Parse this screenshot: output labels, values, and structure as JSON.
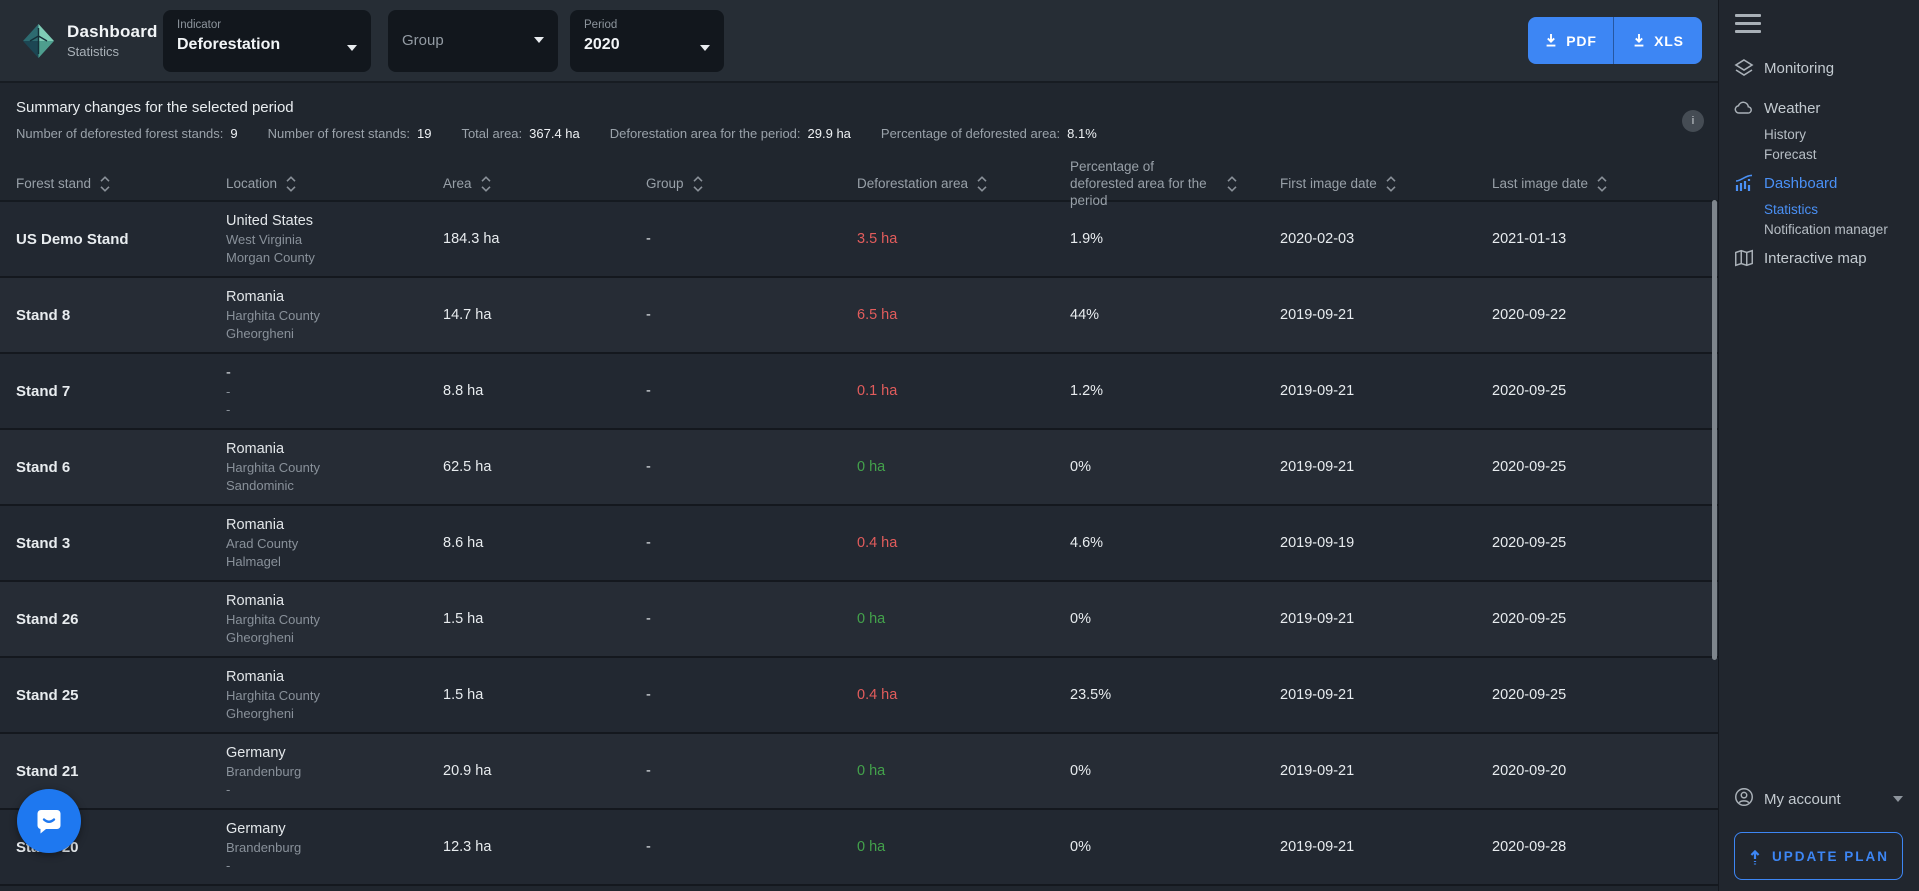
{
  "app": {
    "title": "Dashboard",
    "subtitle": "Statistics"
  },
  "filters": {
    "indicator": {
      "label": "Indicator",
      "value": "Deforestation"
    },
    "group": {
      "placeholder": "Group"
    },
    "period": {
      "label": "Period",
      "value": "2020"
    }
  },
  "export": {
    "pdf_label": "PDF",
    "xls_label": "XLS"
  },
  "summary": {
    "title": "Summary changes for the selected period",
    "info_icon": "i",
    "stats": [
      {
        "label": "Number of deforested forest stands:",
        "value": "9"
      },
      {
        "label": "Number of forest stands:",
        "value": "19"
      },
      {
        "label": "Total area:",
        "value": "367.4 ha"
      },
      {
        "label": "Deforestation area for the period:",
        "value": "29.9 ha"
      },
      {
        "label": "Percentage of deforested area:",
        "value": "8.1%"
      }
    ]
  },
  "table": {
    "columns": [
      "Forest stand",
      "Location",
      "Area",
      "Group",
      "Deforestation area",
      "Percentage of deforested area for the period",
      "First image date",
      "Last image date"
    ],
    "rows": [
      {
        "stand": "US Demo Stand",
        "country": "United States",
        "region": "West Virginia",
        "district": "Morgan County",
        "area": "184.3 ha",
        "group": "-",
        "deforestation": "3.5 ha",
        "deforestation_state": "negative",
        "percentage": "1.9%",
        "first_date": "2020-02-03",
        "last_date": "2021-01-13"
      },
      {
        "stand": "Stand 8",
        "country": "Romania",
        "region": "Harghita County",
        "district": "Gheorgheni",
        "area": "14.7 ha",
        "group": "-",
        "deforestation": "6.5 ha",
        "deforestation_state": "negative",
        "percentage": "44%",
        "first_date": "2019-09-21",
        "last_date": "2020-09-22"
      },
      {
        "stand": "Stand 7",
        "country": "-",
        "region": "-",
        "district": "-",
        "area": "8.8 ha",
        "group": "-",
        "deforestation": "0.1 ha",
        "deforestation_state": "negative",
        "percentage": "1.2%",
        "first_date": "2019-09-21",
        "last_date": "2020-09-25"
      },
      {
        "stand": "Stand 6",
        "country": "Romania",
        "region": "Harghita County",
        "district": "Sandominic",
        "area": "62.5 ha",
        "group": "-",
        "deforestation": "0 ha",
        "deforestation_state": "positive",
        "percentage": "0%",
        "first_date": "2019-09-21",
        "last_date": "2020-09-25"
      },
      {
        "stand": "Stand 3",
        "country": "Romania",
        "region": "Arad County",
        "district": "Halmagel",
        "area": "8.6 ha",
        "group": "-",
        "deforestation": "0.4 ha",
        "deforestation_state": "negative",
        "percentage": "4.6%",
        "first_date": "2019-09-19",
        "last_date": "2020-09-25"
      },
      {
        "stand": "Stand 26",
        "country": "Romania",
        "region": "Harghita County",
        "district": "Gheorgheni",
        "area": "1.5 ha",
        "group": "-",
        "deforestation": "0 ha",
        "deforestation_state": "positive",
        "percentage": "0%",
        "first_date": "2019-09-21",
        "last_date": "2020-09-25"
      },
      {
        "stand": "Stand 25",
        "country": "Romania",
        "region": "Harghita County",
        "district": "Gheorgheni",
        "area": "1.5 ha",
        "group": "-",
        "deforestation": "0.4 ha",
        "deforestation_state": "negative",
        "percentage": "23.5%",
        "first_date": "2019-09-21",
        "last_date": "2020-09-25"
      },
      {
        "stand": "Stand 21",
        "country": "Germany",
        "region": "Brandenburg",
        "district": "-",
        "area": "20.9 ha",
        "group": "-",
        "deforestation": "0 ha",
        "deforestation_state": "positive",
        "percentage": "0%",
        "first_date": "2019-09-21",
        "last_date": "2020-09-20"
      },
      {
        "stand": "Stand 20",
        "country": "Germany",
        "region": "Brandenburg",
        "district": "-",
        "area": "12.3 ha",
        "group": "-",
        "deforestation": "0 ha",
        "deforestation_state": "positive",
        "percentage": "0%",
        "first_date": "2019-09-21",
        "last_date": "2020-09-28"
      }
    ]
  },
  "sidebar": {
    "items": {
      "monitoring": {
        "label": "Monitoring",
        "icon": "layers-icon"
      },
      "weather": {
        "label": "Weather",
        "icon": "cloud-icon"
      },
      "history": {
        "label": "History"
      },
      "forecast": {
        "label": "Forecast"
      },
      "dashboard": {
        "label": "Dashboard",
        "icon": "bar-chart-icon",
        "active": true
      },
      "statistics": {
        "label": "Statistics",
        "active": true
      },
      "notification_manager": {
        "label": "Notification manager"
      },
      "interactive_map": {
        "label": "Interactive map",
        "icon": "map-icon"
      }
    },
    "account_label": "My account",
    "update_plan_label": "UPDATE PLAN"
  },
  "colors": {
    "accent_blue": "#3d86f4",
    "active_blue": "#4a90f5",
    "negative_red": "#e25c5c",
    "positive_green": "#43a24b",
    "background_dark": "#20262e"
  }
}
